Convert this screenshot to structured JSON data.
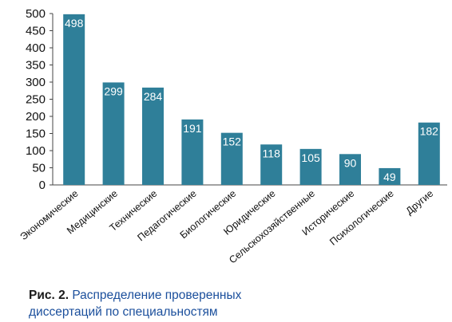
{
  "chart_data": {
    "type": "bar",
    "categories": [
      "Экономические",
      "Медицинские",
      "Технические",
      "Педагогические",
      "Биологические",
      "Юридические",
      "Сельскохозяйственные",
      "Исторические",
      "Психологические",
      "Другие"
    ],
    "values": [
      498,
      299,
      284,
      191,
      152,
      118,
      105,
      90,
      49,
      182
    ],
    "ylim": [
      0,
      500
    ],
    "yticks": [
      0,
      50,
      100,
      150,
      200,
      250,
      300,
      350,
      400,
      450,
      500
    ],
    "grid": false,
    "legend": "none",
    "bar_color": "#2f7f99",
    "label_color": "#ffffff"
  },
  "caption": {
    "figure_label": "Рис. 2.",
    "line1": "Распределение проверенных",
    "line2": "диссертаций по специальностям"
  }
}
